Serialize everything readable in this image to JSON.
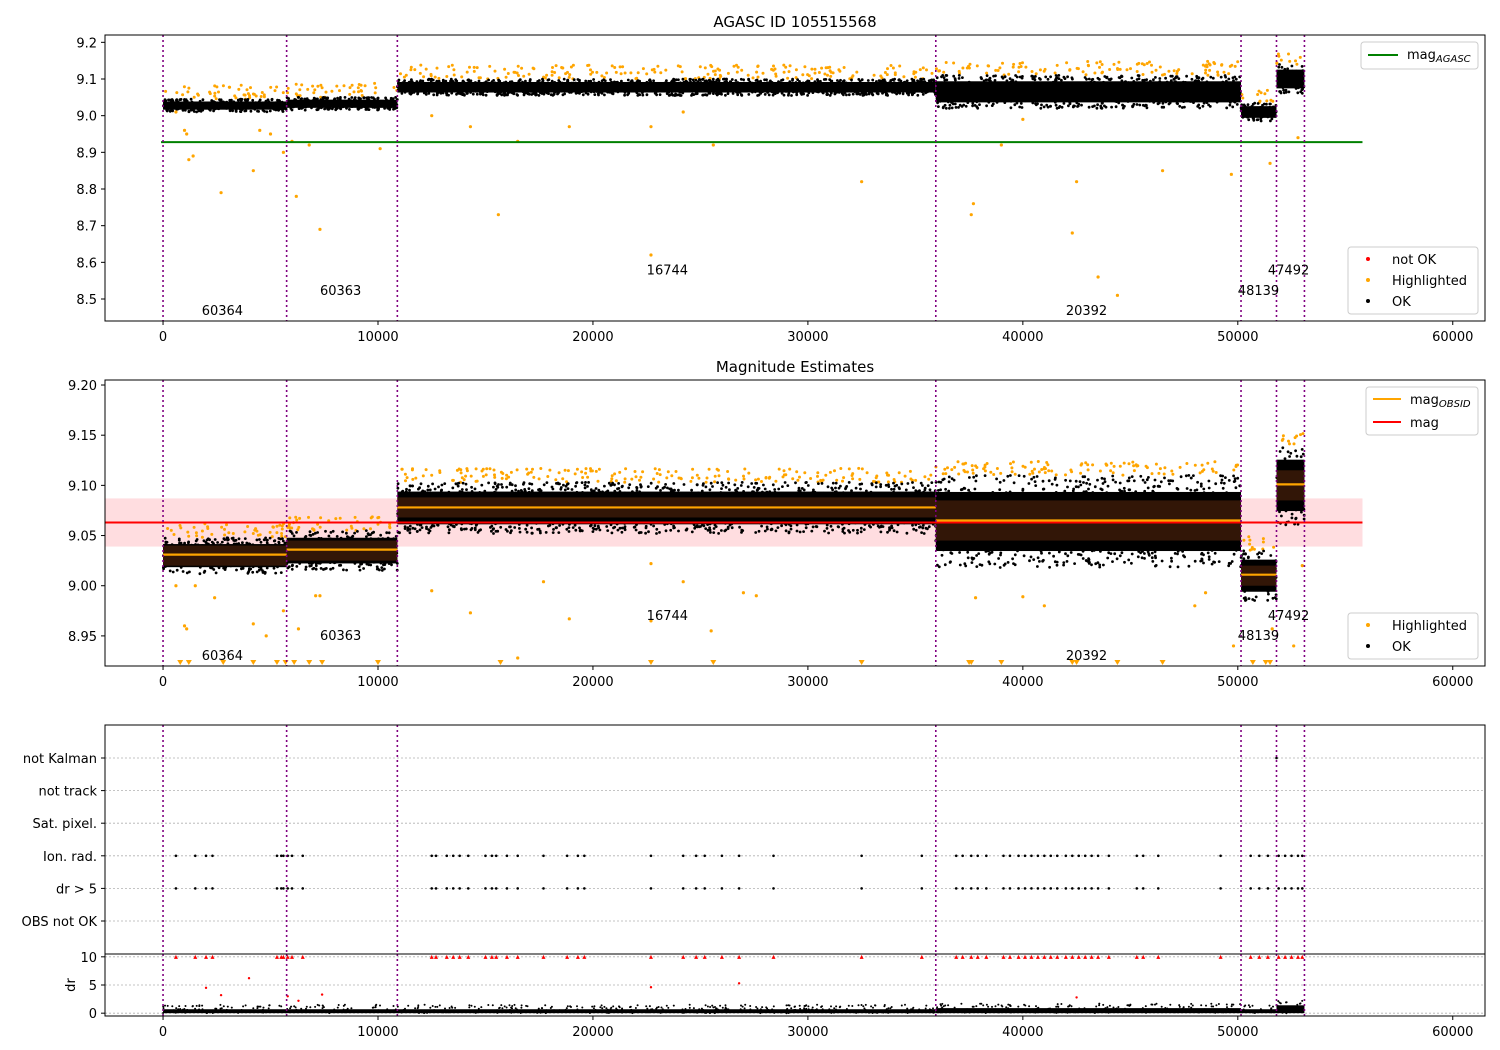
{
  "chart_data": [
    {
      "type": "scatter",
      "title": "AGASC ID 105515568",
      "xlim": [
        -2700,
        61500
      ],
      "ylim": [
        8.44,
        9.22
      ],
      "xticks": [
        0,
        10000,
        20000,
        30000,
        40000,
        50000,
        60000
      ],
      "yticks": [
        8.5,
        8.6,
        8.7,
        8.8,
        8.9,
        9.0,
        9.1,
        9.2
      ],
      "tick_labels_x": [
        "0",
        "10000",
        "20000",
        "30000",
        "40000",
        "50000",
        "60000"
      ],
      "tick_labels_y": [
        "8.5",
        "8.6",
        "8.7",
        "8.8",
        "8.9",
        "9.0",
        "9.1",
        "9.2"
      ],
      "obs_boundaries": [
        0,
        5750,
        10900,
        35950,
        50150,
        51800,
        53100
      ],
      "obsid_labels": [
        {
          "x": 1800,
          "y": 8.47,
          "text": "60364"
        },
        {
          "x": 7300,
          "y": 8.525,
          "text": "60363"
        },
        {
          "x": 22500,
          "y": 8.58,
          "text": "16744"
        },
        {
          "x": 42000,
          "y": 8.47,
          "text": "20392"
        },
        {
          "x": 50000,
          "y": 8.525,
          "text": "48139"
        },
        {
          "x": 51400,
          "y": 8.58,
          "text": "47492"
        }
      ],
      "agasc_mag": 8.928,
      "ok_bands": [
        {
          "x0": 0,
          "x1": 5750,
          "lo": 9.01,
          "hi": 9.045
        },
        {
          "x0": 5750,
          "x1": 10900,
          "lo": 9.015,
          "hi": 9.05
        },
        {
          "x0": 10900,
          "x1": 35950,
          "lo": 9.055,
          "hi": 9.1
        },
        {
          "x0": 35950,
          "x1": 50150,
          "lo": 9.02,
          "hi": 9.11
        },
        {
          "x0": 50150,
          "x1": 51800,
          "lo": 8.985,
          "hi": 9.035
        },
        {
          "x0": 51800,
          "x1": 53100,
          "lo": 9.06,
          "hi": 9.14
        }
      ],
      "highlighted_points": [
        [
          600,
          9.01
        ],
        [
          1000,
          8.96
        ],
        [
          1100,
          8.95
        ],
        [
          1200,
          8.88
        ],
        [
          1400,
          8.89
        ],
        [
          2700,
          8.79
        ],
        [
          4200,
          8.85
        ],
        [
          4500,
          8.96
        ],
        [
          5000,
          8.95
        ],
        [
          5600,
          8.9
        ],
        [
          6000,
          8.93
        ],
        [
          6200,
          8.78
        ],
        [
          6800,
          8.92
        ],
        [
          7300,
          8.69
        ],
        [
          10100,
          8.91
        ],
        [
          12500,
          9.0
        ],
        [
          14300,
          8.97
        ],
        [
          15600,
          8.73
        ],
        [
          16500,
          8.93
        ],
        [
          18900,
          8.97
        ],
        [
          22700,
          8.62
        ],
        [
          22700,
          8.97
        ],
        [
          24200,
          9.01
        ],
        [
          25600,
          8.92
        ],
        [
          32500,
          8.82
        ],
        [
          37600,
          8.73
        ],
        [
          37700,
          8.76
        ],
        [
          39000,
          8.92
        ],
        [
          40000,
          8.99
        ],
        [
          42300,
          8.68
        ],
        [
          42500,
          8.82
        ],
        [
          43500,
          8.56
        ],
        [
          44400,
          8.51
        ],
        [
          46500,
          8.85
        ],
        [
          49700,
          8.84
        ],
        [
          51500,
          8.87
        ],
        [
          52800,
          8.94
        ]
      ],
      "legend_placement": "top-right (mag line), lower-right (points)",
      "legend_line_label": "mag",
      "legend_line_sub": "AGASC",
      "legend_points": [
        "not OK",
        "Highlighted",
        "OK"
      ],
      "colors": {
        "ok": "#000000",
        "highlighted": "#ffa500",
        "not_ok": "#ff0000",
        "agasc_line": "#008000",
        "boundary": "#800080"
      }
    },
    {
      "type": "scatter",
      "title": "Magnitude Estimates",
      "xlim": [
        -2700,
        61500
      ],
      "ylim": [
        8.92,
        9.205
      ],
      "xticks": [
        0,
        10000,
        20000,
        30000,
        40000,
        50000,
        60000
      ],
      "yticks": [
        8.95,
        9.0,
        9.05,
        9.1,
        9.15,
        9.2
      ],
      "tick_labels_x": [
        "0",
        "10000",
        "20000",
        "30000",
        "40000",
        "50000",
        "60000"
      ],
      "tick_labels_y": [
        "8.95",
        "9.00",
        "9.05",
        "9.10",
        "9.15",
        "9.20"
      ],
      "obs_boundaries": [
        0,
        5750,
        10900,
        35950,
        50150,
        51800,
        53100
      ],
      "obsid_labels": [
        {
          "x": 1800,
          "y": 8.931,
          "text": "60364"
        },
        {
          "x": 7300,
          "y": 8.951,
          "text": "60363"
        },
        {
          "x": 22500,
          "y": 8.971,
          "text": "16744"
        },
        {
          "x": 42000,
          "y": 8.931,
          "text": "20392"
        },
        {
          "x": 50000,
          "y": 8.951,
          "text": "48139"
        },
        {
          "x": 51400,
          "y": 8.971,
          "text": "47492"
        }
      ],
      "mag": 9.063,
      "mag_band": [
        9.039,
        9.087
      ],
      "mag_line_xmax": 55800,
      "obsid_mags": [
        {
          "x0": 0,
          "x1": 5750,
          "mag": 9.031,
          "lo": 9.02,
          "hi": 9.04
        },
        {
          "x0": 5750,
          "x1": 10900,
          "mag": 9.036,
          "lo": 9.025,
          "hi": 9.045
        },
        {
          "x0": 10900,
          "x1": 35950,
          "mag": 9.078,
          "lo": 9.068,
          "hi": 9.088
        },
        {
          "x0": 35950,
          "x1": 50150,
          "mag": 9.065,
          "lo": 9.045,
          "hi": 9.085
        },
        {
          "x0": 50150,
          "x1": 51800,
          "mag": 9.011,
          "lo": 9.0,
          "hi": 9.02
        },
        {
          "x0": 51800,
          "x1": 53100,
          "mag": 9.101,
          "lo": 9.085,
          "hi": 9.115
        }
      ],
      "ok_bands": [
        {
          "x0": 0,
          "x1": 5750,
          "lo": 9.012,
          "hi": 9.048
        },
        {
          "x0": 5750,
          "x1": 10900,
          "lo": 9.015,
          "hi": 9.055
        },
        {
          "x0": 10900,
          "x1": 35950,
          "lo": 9.052,
          "hi": 9.103
        },
        {
          "x0": 35950,
          "x1": 50150,
          "lo": 9.018,
          "hi": 9.11
        },
        {
          "x0": 50150,
          "x1": 51800,
          "lo": 8.985,
          "hi": 9.035
        },
        {
          "x0": 51800,
          "x1": 53100,
          "lo": 9.06,
          "hi": 9.14
        }
      ],
      "highlighted_points": [
        [
          600,
          9.0
        ],
        [
          1000,
          8.96
        ],
        [
          1100,
          8.957
        ],
        [
          1500,
          9.0
        ],
        [
          2400,
          8.988
        ],
        [
          4200,
          8.962
        ],
        [
          4800,
          8.95
        ],
        [
          5600,
          8.975
        ],
        [
          6300,
          8.957
        ],
        [
          7100,
          8.99
        ],
        [
          7300,
          8.99
        ],
        [
          12500,
          8.995
        ],
        [
          14300,
          8.973
        ],
        [
          16500,
          8.928
        ],
        [
          17700,
          9.004
        ],
        [
          18900,
          8.967
        ],
        [
          22700,
          9.022
        ],
        [
          22700,
          8.965
        ],
        [
          24200,
          9.004
        ],
        [
          25500,
          8.955
        ],
        [
          27000,
          8.993
        ],
        [
          27600,
          8.99
        ],
        [
          37800,
          8.988
        ],
        [
          40000,
          8.989
        ],
        [
          41000,
          8.98
        ],
        [
          48000,
          8.98
        ],
        [
          48500,
          8.993
        ],
        [
          49800,
          8.94
        ],
        [
          51600,
          8.957
        ],
        [
          52600,
          8.94
        ],
        [
          53000,
          9.02
        ]
      ],
      "clipped_low_x": [
        800,
        1200,
        2800,
        4200,
        5300,
        5700,
        6100,
        6800,
        7400,
        10000,
        15700,
        22700,
        25600,
        32500,
        37500,
        37600,
        39000,
        42300,
        42500,
        44400,
        46500,
        50700,
        51300,
        51500
      ],
      "legend_placement": "top-right (lines), lower-right (points)",
      "legend_lines": [
        {
          "label": "mag",
          "sub": "OBSID",
          "color": "#ffa500"
        },
        {
          "label": "mag",
          "sub": "",
          "color": "#ff0000"
        }
      ],
      "legend_points": [
        "Highlighted",
        "OK"
      ],
      "colors": {
        "ok": "#000000",
        "highlighted": "#ffa500",
        "mag_line": "#ff0000",
        "mag_band": "#ffdde0",
        "obsid_line": "#ffa500",
        "obsid_band": "#3b1a08",
        "boundary": "#800080"
      }
    },
    {
      "type": "scatter",
      "title": "",
      "xlim": [
        -2700,
        61500
      ],
      "flag_categories": [
        "not Kalman",
        "not track",
        "Sat. pixel.",
        "Ion. rad.",
        "dr > 5",
        "OBS not OK"
      ],
      "flag_points": {
        "Ion. rad.": [
          600,
          1500,
          2000,
          2300,
          5300,
          5500,
          5600,
          5800,
          6000,
          6500,
          12500,
          12700,
          13200,
          13500,
          13800,
          14200,
          15000,
          15300,
          15500,
          16000,
          16500,
          17700,
          18800,
          19300,
          19600,
          22700,
          24200,
          24800,
          25200,
          26000,
          26800,
          28400,
          32500,
          35300,
          36900,
          37200,
          37600,
          37900,
          38300,
          39100,
          39400,
          39800,
          40100,
          40400,
          40700,
          41000,
          41300,
          41600,
          42000,
          42300,
          42600,
          42900,
          43200,
          43500,
          44000,
          45300,
          45600,
          46300,
          49200,
          50600,
          51000,
          51400,
          51900,
          52200,
          52500,
          52800,
          53000
        ],
        "dr > 5": [
          600,
          1500,
          2000,
          2300,
          5300,
          5500,
          5600,
          5800,
          6000,
          6500,
          12500,
          12700,
          13200,
          13500,
          13800,
          14200,
          15000,
          15300,
          15500,
          16000,
          16500,
          17700,
          18800,
          19300,
          19600,
          22700,
          24200,
          24800,
          25200,
          26000,
          26800,
          28400,
          32500,
          35300,
          36900,
          37200,
          37600,
          37900,
          38300,
          39100,
          39400,
          39800,
          40100,
          40400,
          40700,
          41000,
          41300,
          41600,
          42000,
          42300,
          42600,
          42900,
          43200,
          43500,
          44000,
          45300,
          45600,
          46300,
          49200,
          50600,
          51000,
          51400,
          51900,
          52200,
          52500,
          52800,
          53000
        ]
      },
      "dr_yticks": [
        0,
        5,
        10
      ],
      "dr_ylabel": "dr",
      "dr_ylim": [
        -0.5,
        10.5
      ],
      "dr_clipped_x": [
        600,
        1500,
        2000,
        2300,
        5300,
        5500,
        5600,
        5800,
        6000,
        6500,
        12500,
        12700,
        13200,
        13500,
        13800,
        14200,
        15000,
        15300,
        15500,
        16000,
        16500,
        17700,
        18800,
        19300,
        19600,
        22700,
        24200,
        24800,
        25200,
        26000,
        26800,
        28400,
        32500,
        35300,
        36900,
        37200,
        37600,
        37900,
        38300,
        39100,
        39400,
        39800,
        40100,
        40400,
        40700,
        41000,
        41300,
        41600,
        42000,
        42300,
        42600,
        42900,
        43200,
        43500,
        44000,
        45300,
        45600,
        46300,
        49200,
        50600,
        51000,
        51400,
        51900,
        52200,
        52500,
        52800,
        53000
      ],
      "dr_scattered": [
        [
          2000,
          4.5
        ],
        [
          2700,
          3.2
        ],
        [
          4000,
          6.2
        ],
        [
          5800,
          3.0
        ],
        [
          6300,
          2.2
        ],
        [
          7400,
          3.3
        ],
        [
          22700,
          4.6
        ],
        [
          26800,
          5.3
        ],
        [
          42500,
          2.8
        ]
      ],
      "xticks": [
        0,
        10000,
        20000,
        30000,
        40000,
        50000,
        60000
      ],
      "tick_labels_x": [
        "0",
        "10000",
        "20000",
        "30000",
        "40000",
        "50000",
        "60000"
      ],
      "tick_labels_dr": [
        "0",
        "5",
        "10"
      ],
      "obs_boundaries": [
        0,
        5750,
        10900,
        35950,
        50150,
        51800,
        53100
      ],
      "colors": {
        "flag": "#000000",
        "dr_clip": "#ff0000",
        "dr": "#000000",
        "boundary": "#800080",
        "grid": "#b0b0b0"
      }
    }
  ]
}
